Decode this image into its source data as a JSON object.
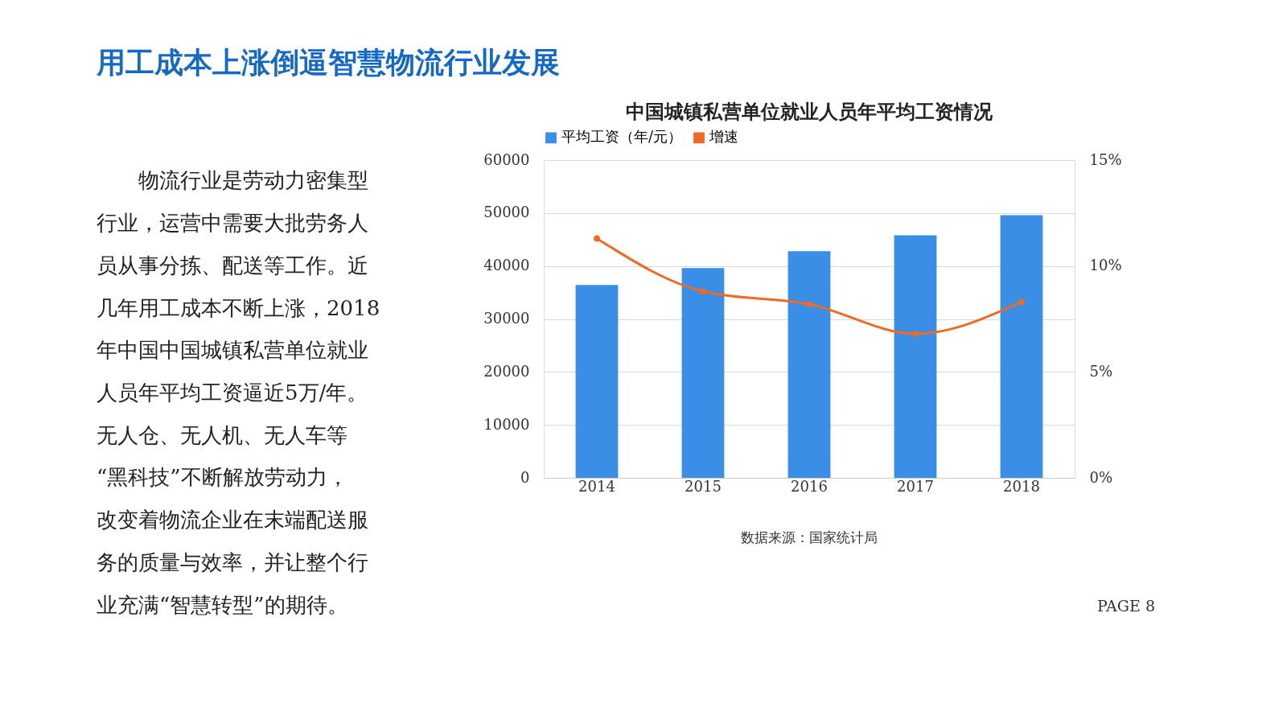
{
  "chart_data": {
    "type": "bar",
    "title": "用工成本上涨倒逼智慧物流行业发展",
    "subtitle": "中国城镇私营单位就业人员年平均工资情况",
    "categories": [
      "2014",
      "2015",
      "2016",
      "2017",
      "2018"
    ],
    "series": [
      {
        "name": "平均工资（年/元）",
        "color": "#3a8ee6",
        "values": [
          36400,
          39600,
          42800,
          45800,
          49600
        ]
      },
      {
        "name": "增速",
        "type": "line",
        "axis": "y2",
        "color": "#ef6a22",
        "marker": "circle",
        "values": [
          11.3,
          8.8,
          8.2,
          6.8,
          8.3
        ]
      }
    ],
    "ylim": [
      0,
      60000
    ],
    "yticks": [
      0,
      10000,
      20000,
      30000,
      40000,
      50000,
      60000
    ],
    "y2lim": [
      0,
      15
    ],
    "y2ticks": [
      {
        "value": 0,
        "label": "0%"
      },
      {
        "value": 5,
        "label": "5%"
      },
      {
        "value": 10,
        "label": "10%"
      },
      {
        "value": 15,
        "label": "15%"
      }
    ],
    "grid": "y",
    "legend": "top",
    "annotations": [
      "物流行业是劳动力密集型行业，运营中需要大批劳务人员从事分拣、配送等工作。近几年用工成本不断上涨，2018年中国中国城镇私营单位就业人员年平均工资逼近5万/年。无人仓、无人机、无人车等“黑科技”不断解放劳动力，改变着物流企业在末端配送服务的质量与效率，并让整个行业充满“智慧转型”的期待。",
      "数据来源：国家统计局",
      "PAGE     8"
    ]
  }
}
